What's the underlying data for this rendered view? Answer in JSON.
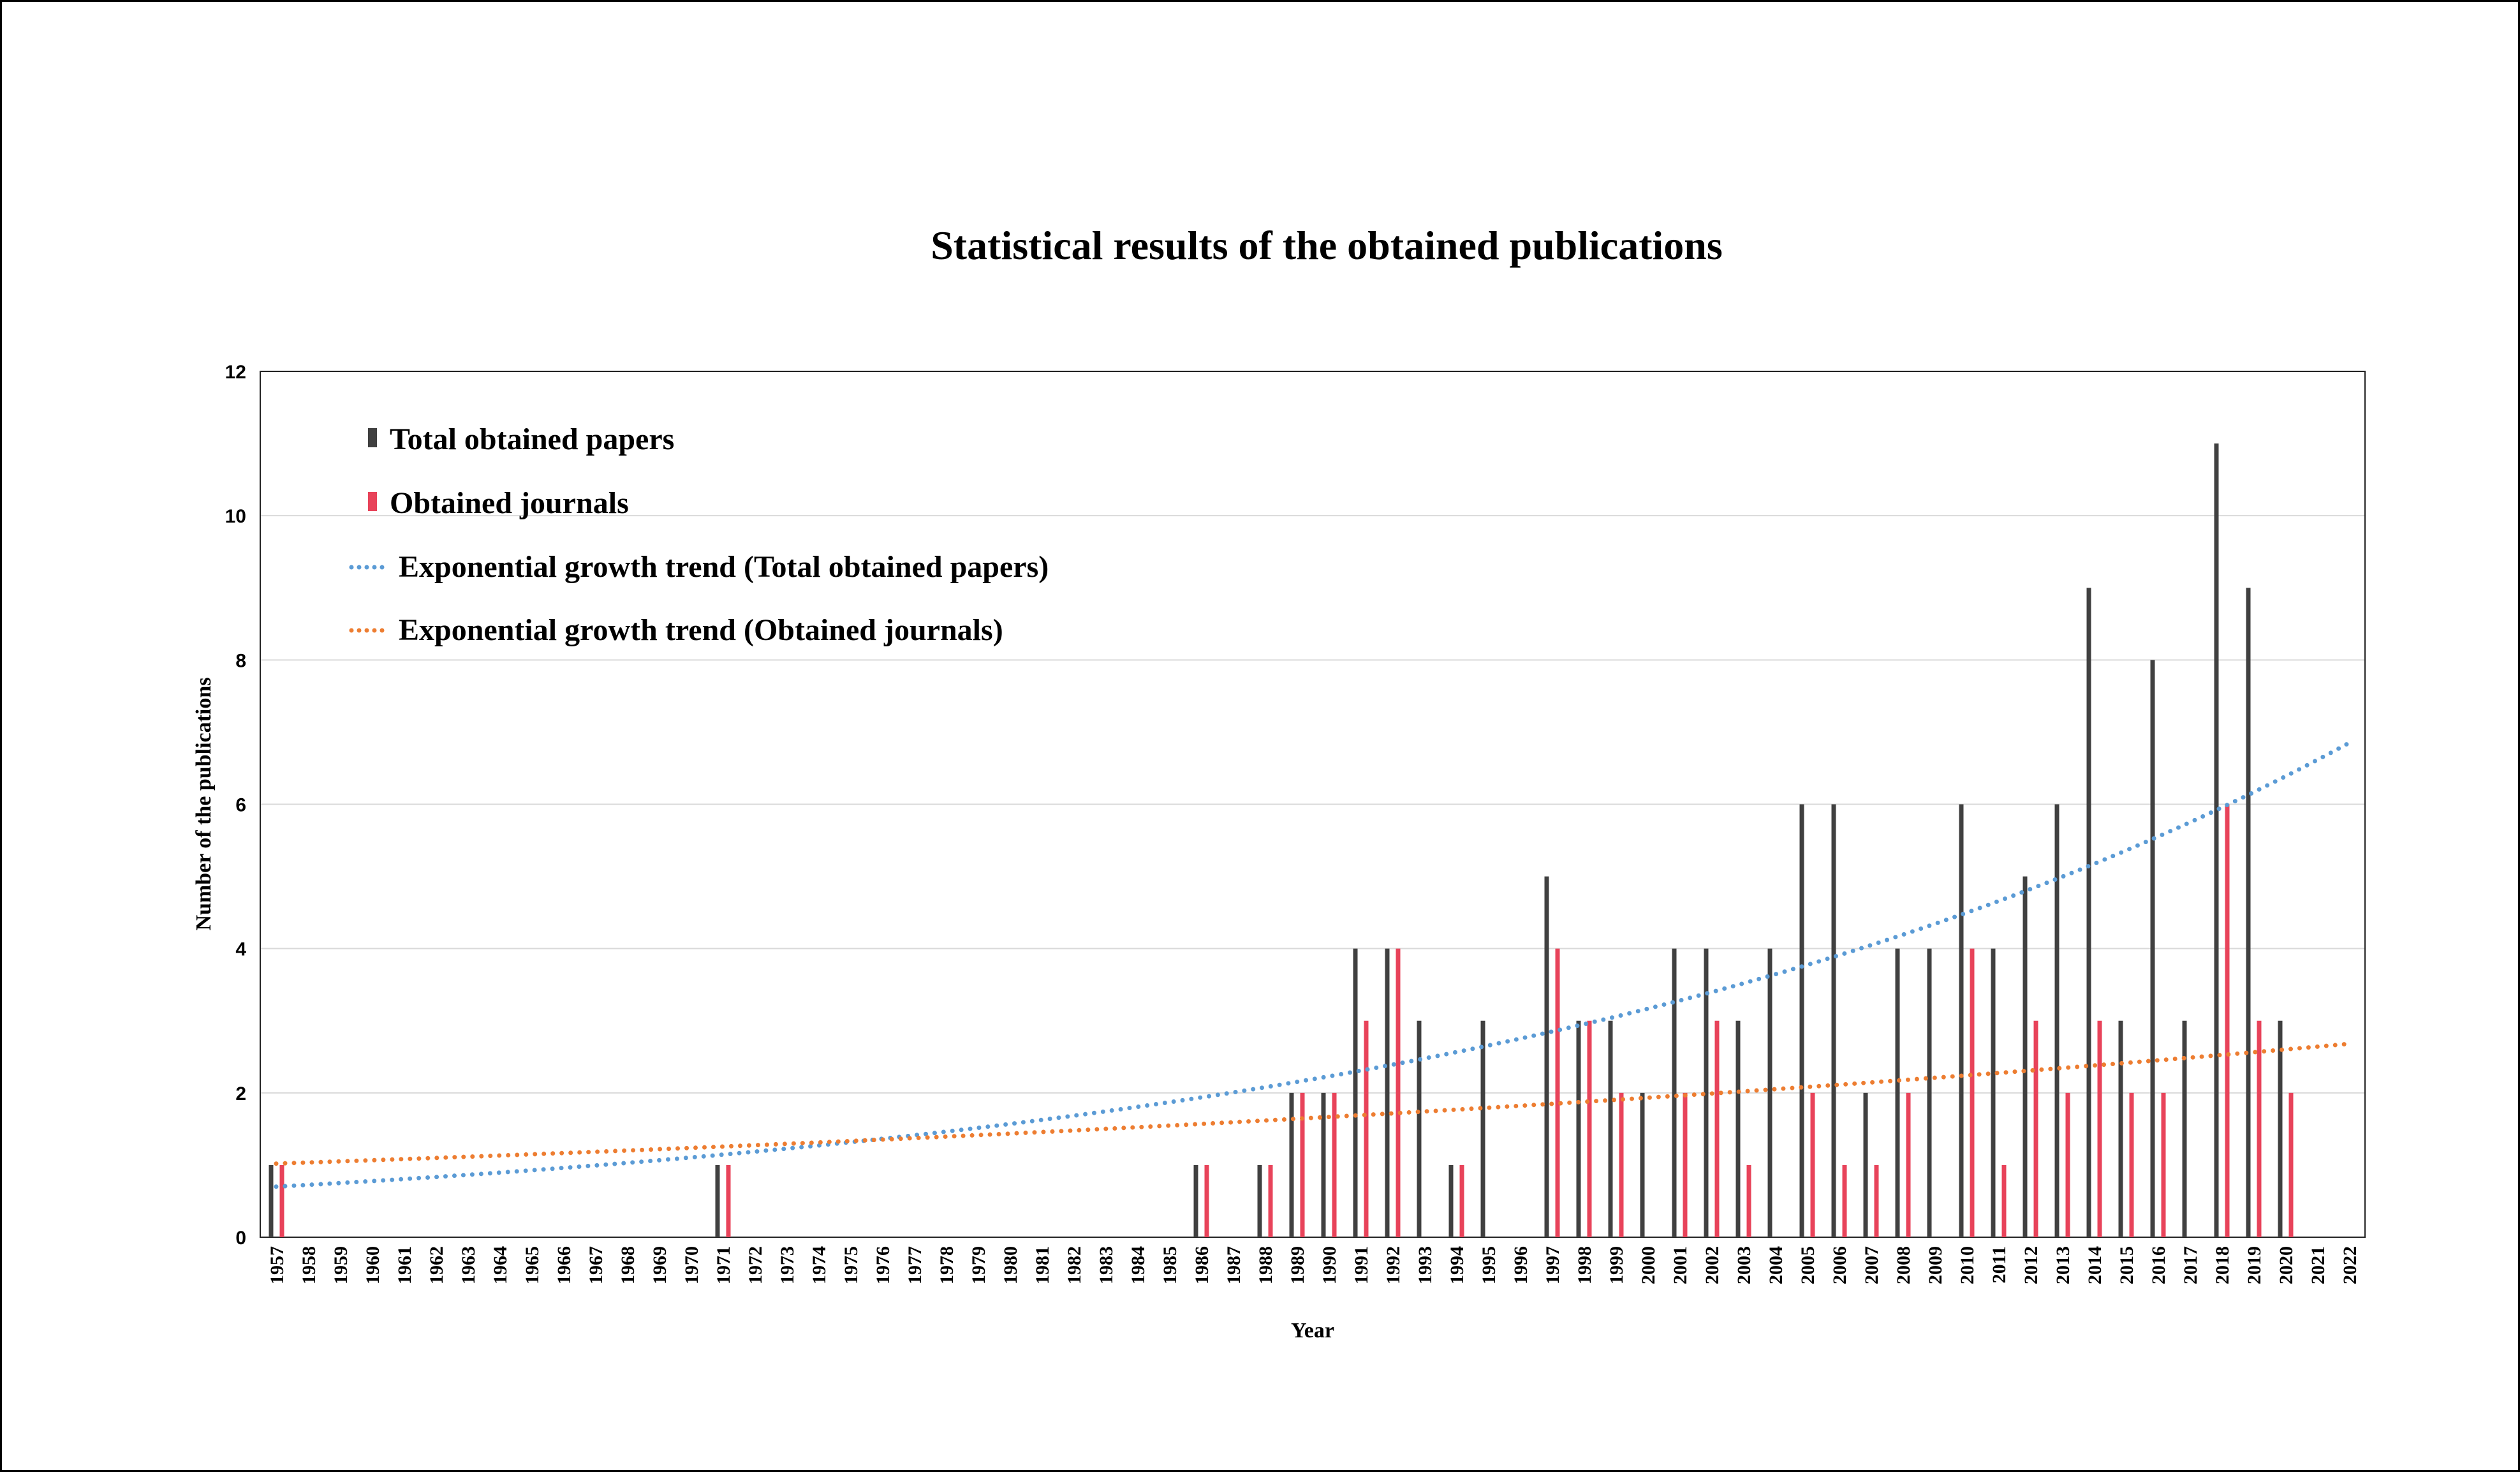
{
  "chart_data": {
    "type": "bar",
    "title": "Statistical results of the obtained publications",
    "xlabel": "Year",
    "ylabel": "Number of the publications",
    "ylim": [
      0,
      12
    ],
    "yticks": [
      0,
      2,
      4,
      6,
      8,
      10,
      12
    ],
    "grid": true,
    "legend_position": "top-left",
    "categories": [
      "1957",
      "1958",
      "1959",
      "1960",
      "1961",
      "1962",
      "1963",
      "1964",
      "1965",
      "1966",
      "1967",
      "1968",
      "1969",
      "1970",
      "1971",
      "1972",
      "1973",
      "1974",
      "1975",
      "1976",
      "1977",
      "1978",
      "1979",
      "1980",
      "1981",
      "1982",
      "1983",
      "1984",
      "1985",
      "1986",
      "1987",
      "1988",
      "1989",
      "1990",
      "1991",
      "1992",
      "1993",
      "1994",
      "1995",
      "1996",
      "1997",
      "1998",
      "1999",
      "2000",
      "2001",
      "2002",
      "2003",
      "2004",
      "2005",
      "2006",
      "2007",
      "2008",
      "2009",
      "2010",
      "2011",
      "2012",
      "2013",
      "2014",
      "2015",
      "2016",
      "2017",
      "2018",
      "2019",
      "2020",
      "2021",
      "2022"
    ],
    "series": [
      {
        "name": "Total obtained papers",
        "color": "#404040",
        "values": [
          1,
          0,
          0,
          0,
          0,
          0,
          0,
          0,
          0,
          0,
          0,
          0,
          0,
          0,
          1,
          0,
          0,
          0,
          0,
          0,
          0,
          0,
          0,
          0,
          0,
          0,
          0,
          0,
          0,
          1,
          0,
          1,
          2,
          2,
          4,
          4,
          3,
          1,
          3,
          0,
          5,
          3,
          3,
          2,
          4,
          4,
          3,
          4,
          6,
          6,
          2,
          4,
          4,
          6,
          4,
          5,
          6,
          9,
          3,
          8,
          3,
          11,
          9,
          3,
          0,
          0
        ]
      },
      {
        "name": "Obtained journals",
        "color": "#e8435a",
        "values": [
          1,
          0,
          0,
          0,
          0,
          0,
          0,
          0,
          0,
          0,
          0,
          0,
          0,
          0,
          1,
          0,
          0,
          0,
          0,
          0,
          0,
          0,
          0,
          0,
          0,
          0,
          0,
          0,
          0,
          1,
          0,
          1,
          2,
          2,
          3,
          4,
          0,
          1,
          0,
          0,
          4,
          3,
          2,
          0,
          2,
          3,
          1,
          0,
          2,
          1,
          1,
          2,
          0,
          4,
          1,
          3,
          2,
          3,
          2,
          2,
          0,
          6,
          3,
          2,
          0,
          0
        ]
      }
    ],
    "trendlines": [
      {
        "name": "Exponential growth trend (Total obtained papers)",
        "type": "exponential",
        "color": "#5b9bd5",
        "start_value": 0.7,
        "end_value": 6.85
      },
      {
        "name": "Exponential growth trend (Obtained journals)",
        "type": "exponential",
        "color": "#ed7d31",
        "start_value": 1.02,
        "end_value": 2.68
      }
    ]
  }
}
